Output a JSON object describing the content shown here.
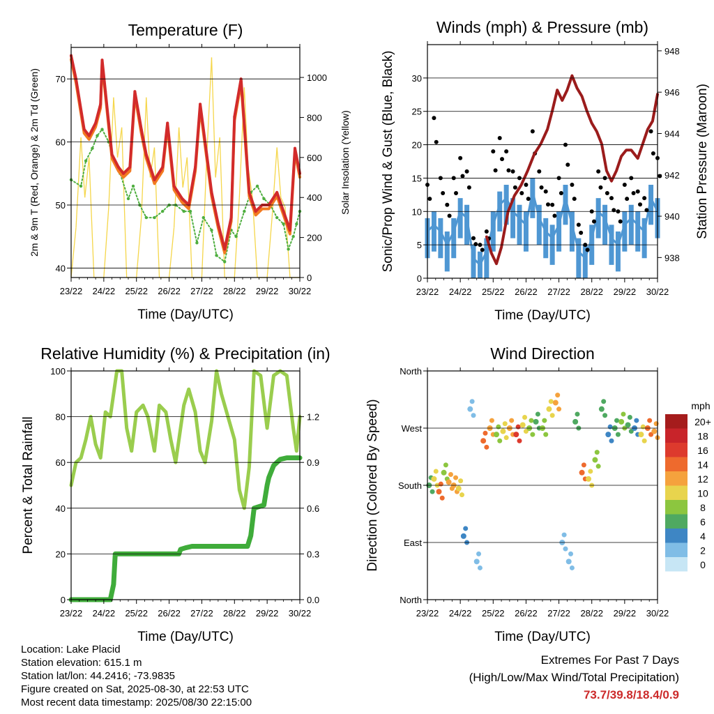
{
  "colors": {
    "temp_2m": "#d22b2b",
    "temp_9m": "#f27a21",
    "dewpoint": "#4eae3f",
    "solar": "#f5d64a",
    "wind_speed": "#4f97d3",
    "wind_gust": "#000000",
    "pressure": "#9b1c1c",
    "rh": "#9acd4e",
    "precip": "#3fac3a",
    "extremes": "#cc2a2a"
  },
  "chart_data": [
    {
      "id": "temperature",
      "type": "line",
      "title": "Temperature (F)",
      "xlabel": "Time (Day/UTC)",
      "ylabel_left": "2m & 9m T (Red, Orange) & 2m Td (Green)",
      "ylabel_right": "Solar Insolation (Yellow)",
      "x_ticks": [
        "23/22",
        "24/22",
        "25/22",
        "26/22",
        "27/22",
        "28/22",
        "29/22",
        "30/22"
      ],
      "xlim": [
        0,
        7
      ],
      "ylim_left": [
        38.5,
        75
      ],
      "ylim_right": [
        0,
        1150
      ],
      "y_ticks_left": [
        40,
        50,
        60,
        70
      ],
      "y_ticks_right": [
        0,
        200,
        400,
        600,
        800,
        1000
      ],
      "grid": true,
      "series": [
        {
          "name": "2m T",
          "axis": "left",
          "x": [
            0,
            0.15,
            0.4,
            0.55,
            0.75,
            0.9,
            0.95,
            1.05,
            1.25,
            1.45,
            1.6,
            1.8,
            1.95,
            2.15,
            2.3,
            2.55,
            2.8,
            2.95,
            3.15,
            3.4,
            3.6,
            3.8,
            3.95,
            4.15,
            4.3,
            4.5,
            4.7,
            4.9,
            5.0,
            5.2,
            5.45,
            5.65,
            5.85,
            6.05,
            6.3,
            6.5,
            6.7,
            6.85,
            7.0
          ],
          "y": [
            73.7,
            70,
            62,
            61,
            63,
            66,
            73,
            68,
            58,
            56,
            55,
            56,
            68,
            62,
            58,
            54,
            56,
            63,
            53,
            51,
            50,
            56,
            66,
            58,
            52,
            47,
            43,
            48,
            64,
            70,
            52,
            49,
            50,
            50,
            52,
            49,
            46,
            59,
            55
          ]
        },
        {
          "name": "2m Td",
          "axis": "left",
          "x": [
            0,
            0.3,
            0.45,
            0.65,
            0.8,
            0.95,
            1.15,
            1.3,
            1.5,
            1.75,
            1.9,
            2.1,
            2.3,
            2.55,
            2.8,
            3.0,
            3.2,
            3.45,
            3.65,
            3.85,
            4.05,
            4.3,
            4.45,
            4.7,
            4.9,
            5.05,
            5.3,
            5.5,
            5.7,
            5.9,
            6.1,
            6.3,
            6.5,
            6.65,
            6.8,
            6.9,
            7.0
          ],
          "y": [
            54,
            53,
            57,
            59,
            61,
            62,
            60,
            57,
            55,
            51,
            53,
            50,
            48,
            48,
            49,
            50,
            50,
            49,
            49,
            44,
            48,
            46,
            42,
            41,
            46,
            45,
            49,
            52,
            53,
            51,
            50,
            48,
            47,
            43,
            45,
            47,
            49
          ]
        },
        {
          "name": "Solar Insolation",
          "axis": "right",
          "x": [
            0,
            0.15,
            0.3,
            0.42,
            0.55,
            0.7,
            1.0,
            1.15,
            1.3,
            1.42,
            1.55,
            1.7,
            2.0,
            2.15,
            2.3,
            2.42,
            2.55,
            2.7,
            3.0,
            3.15,
            3.3,
            3.42,
            3.55,
            3.7,
            4.0,
            4.15,
            4.3,
            4.42,
            4.55,
            4.7,
            5.0,
            5.15,
            5.3,
            5.42,
            5.55,
            5.7,
            6.0,
            6.15,
            6.3,
            6.42,
            6.55,
            6.7,
            7.0
          ],
          "y": [
            0,
            250,
            700,
            400,
            600,
            0,
            0,
            350,
            900,
            600,
            750,
            0,
            0,
            300,
            900,
            500,
            650,
            0,
            0,
            250,
            750,
            450,
            600,
            0,
            0,
            600,
            1100,
            500,
            700,
            0,
            0,
            400,
            950,
            550,
            400,
            0,
            0,
            300,
            650,
            400,
            350,
            0,
            0
          ]
        }
      ]
    },
    {
      "id": "winds",
      "type": "scatter",
      "title": "Winds (mph) & Pressure (mb)",
      "xlabel": "Time (Day/UTC)",
      "ylabel_left": "Sonic/Prop Wind & Gust (Blue, Black)",
      "ylabel_right": "Station Pressure (Maroon)",
      "x_ticks": [
        "23/22",
        "24/22",
        "25/22",
        "26/22",
        "27/22",
        "28/22",
        "29/22",
        "30/22"
      ],
      "xlim": [
        0,
        7
      ],
      "ylim_left": [
        0,
        35
      ],
      "ylim_right": [
        937,
        948.3
      ],
      "y_ticks_left": [
        0,
        5,
        10,
        15,
        20,
        25,
        30
      ],
      "y_ticks_right": [
        938,
        940,
        942,
        944,
        946,
        948
      ],
      "grid": true,
      "series": [
        {
          "name": "Wind Speed",
          "axis": "left",
          "x": [
            0,
            0.2,
            0.4,
            0.6,
            0.8,
            1.0,
            1.2,
            1.4,
            1.6,
            1.8,
            2.0,
            2.2,
            2.4,
            2.6,
            2.8,
            3.0,
            3.2,
            3.4,
            3.6,
            3.8,
            4.0,
            4.2,
            4.4,
            4.6,
            4.8,
            5.0,
            5.2,
            5.4,
            5.6,
            5.8,
            6.0,
            6.2,
            6.4,
            6.6,
            6.8,
            7.0
          ],
          "y": [
            7,
            8,
            7,
            5,
            7,
            10,
            9,
            3,
            2,
            4,
            8,
            11,
            12,
            10,
            9,
            8,
            13,
            9,
            7,
            6,
            8,
            12,
            8,
            4,
            3,
            6,
            10,
            9,
            6,
            5,
            8,
            9,
            8,
            7,
            12,
            10
          ]
        },
        {
          "name": "Wind Gust",
          "axis": "left",
          "x": [
            0,
            0.2,
            0.4,
            0.6,
            0.8,
            1.0,
            1.2,
            1.4,
            1.6,
            1.8,
            2.0,
            2.2,
            2.4,
            2.6,
            2.8,
            3.0,
            3.2,
            3.4,
            3.6,
            3.8,
            4.0,
            4.2,
            4.4,
            4.6,
            4.8,
            5.0,
            5.2,
            5.4,
            5.6,
            5.8,
            6.0,
            6.2,
            6.4,
            6.6,
            6.8,
            7.0
          ],
          "y": [
            14,
            24,
            15,
            11,
            15,
            18,
            16,
            6,
            5,
            7,
            19,
            21,
            19,
            16,
            15,
            14,
            22,
            16,
            13,
            11,
            15,
            20,
            14,
            8,
            5,
            10,
            16,
            15,
            12,
            10,
            14,
            15,
            13,
            12,
            22,
            18
          ]
        },
        {
          "name": "Station Pressure",
          "axis": "right",
          "x": [
            1.8,
            1.95,
            2.1,
            2.25,
            2.45,
            2.65,
            2.85,
            3.05,
            3.25,
            3.45,
            3.65,
            3.8,
            3.95,
            4.1,
            4.25,
            4.4,
            4.55,
            4.7,
            4.85,
            5.0,
            5.15,
            5.3,
            5.45,
            5.6,
            5.75,
            5.9,
            6.05,
            6.2,
            6.4,
            6.55,
            6.7,
            6.85,
            7.0
          ],
          "y": [
            939,
            938.2,
            937.7,
            938.5,
            940.2,
            941,
            941.5,
            942.2,
            943,
            943.5,
            944.2,
            945.1,
            946.1,
            945.6,
            946.1,
            946.8,
            946.2,
            945.8,
            945.1,
            944.5,
            944.1,
            943.5,
            942.2,
            941.7,
            942.2,
            942.9,
            943.2,
            943.2,
            942.8,
            943.5,
            944.2,
            944.6,
            945.9
          ]
        }
      ]
    },
    {
      "id": "humidity",
      "type": "line",
      "title": "Relative Humidity (%) & Precipitation (in)",
      "xlabel": "Time (Day/UTC)",
      "ylabel_left": "Percent & Total Rainfall",
      "x_ticks": [
        "23/22",
        "24/22",
        "25/22",
        "26/22",
        "27/22",
        "28/22",
        "29/22",
        "30/22"
      ],
      "xlim": [
        0,
        7
      ],
      "ylim_left": [
        0,
        100
      ],
      "ylim_right": [
        0,
        1.5
      ],
      "y_ticks_left": [
        0,
        20,
        40,
        60,
        80,
        100
      ],
      "y_ticks_right": [
        0.0,
        0.3,
        0.6,
        0.9,
        1.2
      ],
      "grid": true,
      "series": [
        {
          "name": "Relative Humidity",
          "axis": "left",
          "x": [
            0,
            0.15,
            0.3,
            0.45,
            0.6,
            0.75,
            0.9,
            1.05,
            1.2,
            1.4,
            1.55,
            1.7,
            1.85,
            2.0,
            2.2,
            2.35,
            2.55,
            2.7,
            2.9,
            3.05,
            3.2,
            3.45,
            3.6,
            3.8,
            3.95,
            4.1,
            4.3,
            4.45,
            4.6,
            4.8,
            5.0,
            5.15,
            5.3,
            5.45,
            5.6,
            5.8,
            6.0,
            6.2,
            6.4,
            6.6,
            6.8,
            6.9,
            7.0
          ],
          "y": [
            50,
            60,
            62,
            70,
            80,
            68,
            62,
            82,
            80,
            100,
            100,
            75,
            65,
            82,
            85,
            80,
            65,
            85,
            82,
            70,
            60,
            85,
            92,
            82,
            65,
            60,
            78,
            100,
            90,
            80,
            70,
            48,
            40,
            58,
            100,
            98,
            75,
            98,
            100,
            98,
            75,
            65,
            80
          ]
        },
        {
          "name": "Total Rainfall",
          "axis": "right",
          "x": [
            0,
            1.2,
            1.3,
            1.35,
            1.5,
            3.3,
            3.35,
            3.5,
            3.7,
            5.4,
            5.5,
            5.6,
            5.9,
            6.0,
            6.05,
            6.2,
            6.4,
            6.6,
            7.0
          ],
          "y": [
            0.0,
            0.0,
            0.1,
            0.3,
            0.3,
            0.3,
            0.33,
            0.34,
            0.35,
            0.35,
            0.42,
            0.6,
            0.62,
            0.75,
            0.8,
            0.88,
            0.92,
            0.93,
            0.93
          ]
        }
      ]
    },
    {
      "id": "direction",
      "type": "scatter",
      "title": "Wind Direction",
      "xlabel": "Time (Day/UTC)",
      "ylabel_left": "Direction (Colored By Speed)",
      "x_ticks": [
        "23/22",
        "24/22",
        "25/22",
        "26/22",
        "27/22",
        "28/22",
        "29/22",
        "30/22"
      ],
      "xlim": [
        0,
        7
      ],
      "ylim_left": [
        0,
        360
      ],
      "y_tick_labels": [
        "North",
        "East",
        "South",
        "West",
        "North"
      ],
      "y_ticks_left": [
        0,
        90,
        180,
        270,
        360
      ],
      "grid": true,
      "series": [
        {
          "name": "Direction",
          "x": [
            0.05,
            0.2,
            0.35,
            0.5,
            0.65,
            0.8,
            0.95,
            1.1,
            1.3,
            1.5,
            1.7,
            1.9,
            2.1,
            2.3,
            2.5,
            2.7,
            2.9,
            3.1,
            3.3,
            3.5,
            3.7,
            3.9,
            4.1,
            4.3,
            4.5,
            4.7,
            4.9,
            5.1,
            5.3,
            5.5,
            5.7,
            5.9,
            6.1,
            6.3,
            6.5,
            6.7,
            6.9
          ],
          "y": [
            180,
            190,
            170,
            200,
            185,
            180,
            175,
            100,
            300,
            60,
            250,
            270,
            260,
            265,
            270,
            260,
            275,
            270,
            280,
            270,
            300,
            310,
            90,
            60,
            280,
            200,
            190,
            220,
            300,
            260,
            270,
            280,
            275,
            270,
            260,
            270,
            265
          ],
          "speed": [
            6,
            10,
            14,
            8,
            12,
            13,
            11,
            4,
            2,
            3,
            15,
            12,
            8,
            10,
            12,
            16,
            10,
            8,
            6,
            8,
            10,
            12,
            2,
            3,
            6,
            14,
            10,
            8,
            6,
            4,
            6,
            8,
            6,
            4,
            10,
            14,
            12
          ]
        }
      ],
      "colorbar": {
        "label": "mph",
        "ticks": [
          "20+",
          "18",
          "16",
          "14",
          "12",
          "10",
          "8",
          "6",
          "4",
          "2",
          "0"
        ],
        "colors": [
          "#a51c1c",
          "#c8242a",
          "#dd3a2d",
          "#ee6a2d",
          "#f5a23d",
          "#e8d44d",
          "#8cc63f",
          "#4fa961",
          "#3e86c4",
          "#80bde6",
          "#c7e6f5"
        ]
      }
    }
  ],
  "info": {
    "location": "Location: Lake Placid",
    "elevation": "Station elevation: 615.1 m",
    "latlon": "Station lat/lon: 44.2416; -73.9835",
    "created": "Figure created on Sat, 2025-08-30, at 22:53 UTC",
    "timestamp": "Most recent data timestamp: 2025/08/30 22:15:00"
  },
  "extremes": {
    "title": "Extremes For Past 7 Days",
    "subtitle": "(High/Low/Max Wind/Total Precipitation)",
    "values": "73.7/39.8/18.4/0.9"
  }
}
